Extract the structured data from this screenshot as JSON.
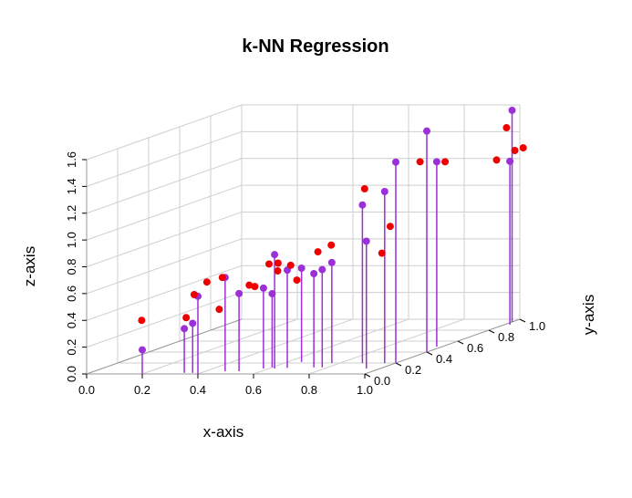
{
  "chart_data": {
    "type": "scatter",
    "title": "k-NN Regression",
    "xlabel": "x-axis",
    "ylabel": "y-axis",
    "zlabel": "z-axis",
    "xlim": [
      0,
      1
    ],
    "ylim": [
      0,
      1
    ],
    "zlim": [
      0,
      1.6
    ],
    "x_ticks": [
      "0.0",
      "0.2",
      "0.4",
      "0.6",
      "0.8",
      "1.0"
    ],
    "y_ticks": [
      "0.0",
      "0.2",
      "0.4",
      "0.6",
      "0.8",
      "1.0"
    ],
    "z_ticks": [
      "0.0",
      "0.2",
      "0.4",
      "0.6",
      "0.8",
      "1.0",
      "1.2",
      "1.4",
      "1.6"
    ],
    "grid": true,
    "box": true,
    "colors": {
      "observed": "#9b30d9",
      "predicted": "#ee0000",
      "drop_line": "#9b30d9",
      "grid": "#cfcfcf",
      "box": "#9a9a9a"
    },
    "series": [
      {
        "marker_color": "#9b30d9",
        "drop_lines": true,
        "points": [
          [
            0.2,
            0.0,
            0.18
          ],
          [
            0.34,
            0.02,
            0.33
          ],
          [
            0.37,
            0.02,
            0.37
          ],
          [
            0.4,
            0.0,
            0.58
          ],
          [
            0.47,
            0.05,
            0.7
          ],
          [
            0.52,
            0.05,
            0.58
          ],
          [
            0.58,
            0.1,
            0.6
          ],
          [
            0.62,
            0.1,
            0.85
          ],
          [
            0.6,
            0.12,
            0.55
          ],
          [
            0.66,
            0.11,
            0.73
          ],
          [
            0.65,
            0.22,
            0.7
          ],
          [
            0.75,
            0.12,
            0.7
          ],
          [
            0.78,
            0.12,
            0.73
          ],
          [
            0.77,
            0.2,
            0.75
          ],
          [
            0.88,
            0.2,
            1.18
          ],
          [
            0.95,
            0.1,
            0.95
          ],
          [
            0.96,
            0.2,
            1.28
          ],
          [
            1.0,
            0.2,
            1.5
          ],
          [
            0.98,
            0.5,
            1.38
          ],
          [
            1.0,
            0.4,
            1.65
          ],
          [
            1.02,
            0.9,
            1.22
          ],
          [
            1.0,
            0.95,
            1.58
          ]
        ]
      },
      {
        "marker_color": "#ee0000",
        "drop_lines": false,
        "points": [
          [
            0.17,
            0.05,
            0.38
          ],
          [
            0.33,
            0.05,
            0.4
          ],
          [
            0.37,
            0.03,
            0.58
          ],
          [
            0.41,
            0.04,
            0.67
          ],
          [
            0.46,
            0.05,
            0.7
          ],
          [
            0.46,
            0.03,
            0.47
          ],
          [
            0.54,
            0.08,
            0.63
          ],
          [
            0.56,
            0.08,
            0.62
          ],
          [
            0.6,
            0.1,
            0.78
          ],
          [
            0.62,
            0.12,
            0.72
          ],
          [
            0.61,
            0.14,
            0.77
          ],
          [
            0.65,
            0.15,
            0.75
          ],
          [
            0.7,
            0.1,
            0.66
          ],
          [
            0.72,
            0.2,
            0.83
          ],
          [
            0.74,
            0.25,
            0.86
          ],
          [
            0.86,
            0.25,
            1.28
          ],
          [
            0.95,
            0.2,
            0.82
          ],
          [
            0.98,
            0.2,
            1.02
          ],
          [
            0.92,
            0.5,
            1.38
          ],
          [
            1.01,
            0.5,
            1.38
          ],
          [
            0.98,
            0.95,
            1.45
          ],
          [
            1.0,
            0.85,
            1.25
          ],
          [
            1.01,
            0.95,
            1.28
          ],
          [
            1.04,
            0.95,
            1.3
          ]
        ]
      }
    ]
  }
}
